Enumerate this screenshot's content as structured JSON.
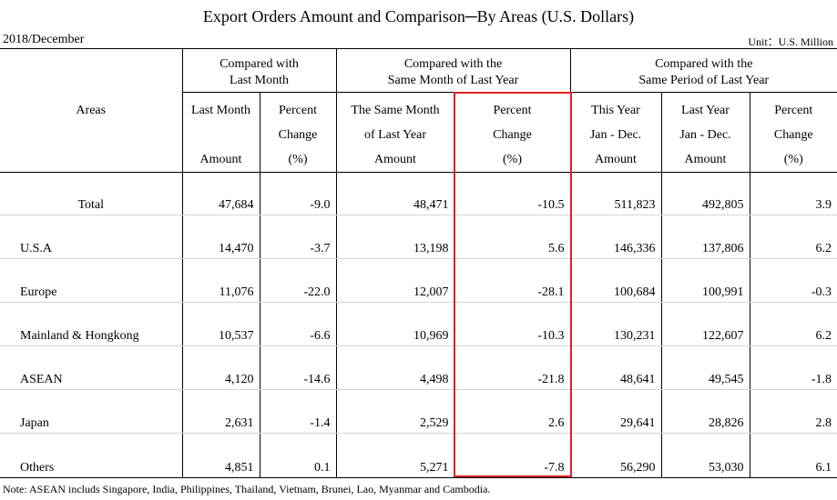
{
  "title": "Export Orders Amount and Comparison─By Areas (U.S. Dollars)",
  "period": "2018/December",
  "unit": "Unit：U.S. Million",
  "headers": {
    "areas": "Areas",
    "group_last_month": [
      "Compared with",
      "Last Month"
    ],
    "group_same_month": [
      "Compared with the",
      "Same Month of Last Year"
    ],
    "group_same_period": [
      "Compared with the",
      "Same Period of Last Year"
    ],
    "col_last_month": [
      "Last Month",
      "",
      "Amount"
    ],
    "col_pct1": [
      "Percent",
      "Change",
      "(%)"
    ],
    "col_same_month": [
      "The Same Month",
      "of Last Year",
      "Amount"
    ],
    "col_pct2": [
      "Percent",
      "Change",
      "(%)"
    ],
    "col_this_year": [
      "This Year",
      "Jan - Dec.",
      "Amount"
    ],
    "col_last_year": [
      "Last Year",
      "Jan - Dec.",
      "Amount"
    ],
    "col_pct3": [
      "Percent",
      "Change",
      "(%)"
    ]
  },
  "rows": [
    {
      "area": "Total",
      "last_month": "47,684",
      "pct1": "-9.0",
      "same_month": "48,471",
      "pct2": "-10.5",
      "this_year": "511,823",
      "last_year": "492,805",
      "pct3": "3.9"
    },
    {
      "area": "U.S.A",
      "last_month": "14,470",
      "pct1": "-3.7",
      "same_month": "13,198",
      "pct2": "5.6",
      "this_year": "146,336",
      "last_year": "137,806",
      "pct3": "6.2"
    },
    {
      "area": "Europe",
      "last_month": "11,076",
      "pct1": "-22.0",
      "same_month": "12,007",
      "pct2": "-28.1",
      "this_year": "100,684",
      "last_year": "100,991",
      "pct3": "-0.3"
    },
    {
      "area": "Mainland & Hongkong",
      "last_month": "10,537",
      "pct1": "-6.6",
      "same_month": "10,969",
      "pct2": "-10.3",
      "this_year": "130,231",
      "last_year": "122,607",
      "pct3": "6.2"
    },
    {
      "area": "ASEAN",
      "last_month": "4,120",
      "pct1": "-14.6",
      "same_month": "4,498",
      "pct2": "-21.8",
      "this_year": "48,641",
      "last_year": "49,545",
      "pct3": "-1.8"
    },
    {
      "area": "Japan",
      "last_month": "2,631",
      "pct1": "-1.4",
      "same_month": "2,529",
      "pct2": "2.6",
      "this_year": "29,641",
      "last_year": "28,826",
      "pct3": "2.8"
    },
    {
      "area": "Others",
      "last_month": "4,851",
      "pct1": "0.1",
      "same_month": "5,271",
      "pct2": "-7.8",
      "this_year": "56,290",
      "last_year": "53,030",
      "pct3": "6.1"
    }
  ],
  "note": "Note: ASEAN includs Singapore, India, Philippines, Thailand, Vietnam, Brunei, Lao, Myanmar and Cambodia.",
  "highlight_color": "#e02020"
}
